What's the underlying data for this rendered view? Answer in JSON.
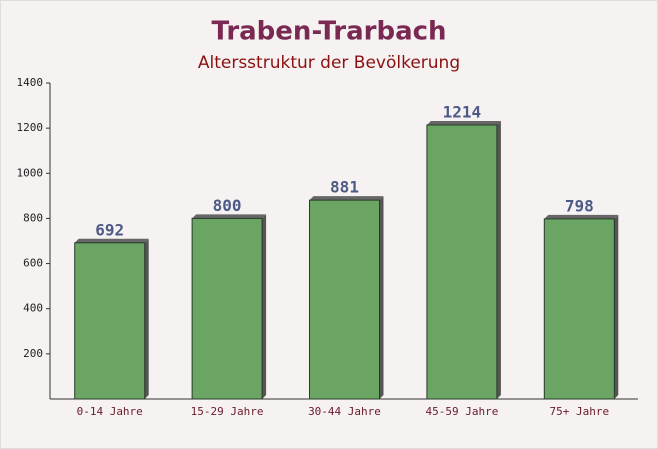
{
  "chart_data": {
    "type": "bar",
    "title": "Traben-Trarbach",
    "subtitle": "Altersstruktur der Bevölkerung",
    "categories": [
      "0-14 Jahre",
      "15-29 Jahre",
      "30-44 Jahre",
      "45-59 Jahre",
      "75+ Jahre"
    ],
    "values": [
      692,
      800,
      881,
      1214,
      798
    ],
    "color": "#6aa564",
    "ylim": [
      0,
      1400
    ],
    "yticks": [
      200,
      400,
      600,
      800,
      1000,
      1200,
      1400
    ],
    "grid": false
  }
}
